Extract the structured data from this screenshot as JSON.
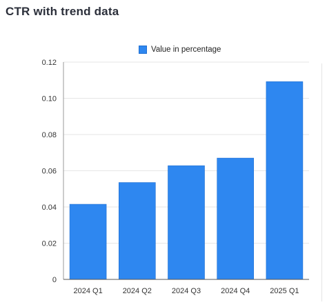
{
  "title": "CTR with trend data",
  "colors": {
    "bar": "#2e87f0",
    "bar_stroke": "#1f6fd1",
    "grid": "#e6e6e6",
    "axis": "#9a9a9a"
  },
  "chart_data": {
    "type": "bar",
    "title": "CTR with trend data",
    "categories": [
      "2024 Q1",
      "2024 Q2",
      "2024 Q3",
      "2024 Q4",
      "2025 Q1"
    ],
    "series": [
      {
        "name": "Value in percentage",
        "values": [
          0.0415,
          0.0535,
          0.0628,
          0.067,
          0.1092
        ]
      }
    ],
    "yticks": [
      "0",
      "0.02",
      "0.04",
      "0.06",
      "0.08",
      "0.10",
      "0.12"
    ],
    "ylim": [
      0,
      0.12
    ],
    "grid": true,
    "legend": "top-center",
    "xlabel": "",
    "ylabel": ""
  }
}
